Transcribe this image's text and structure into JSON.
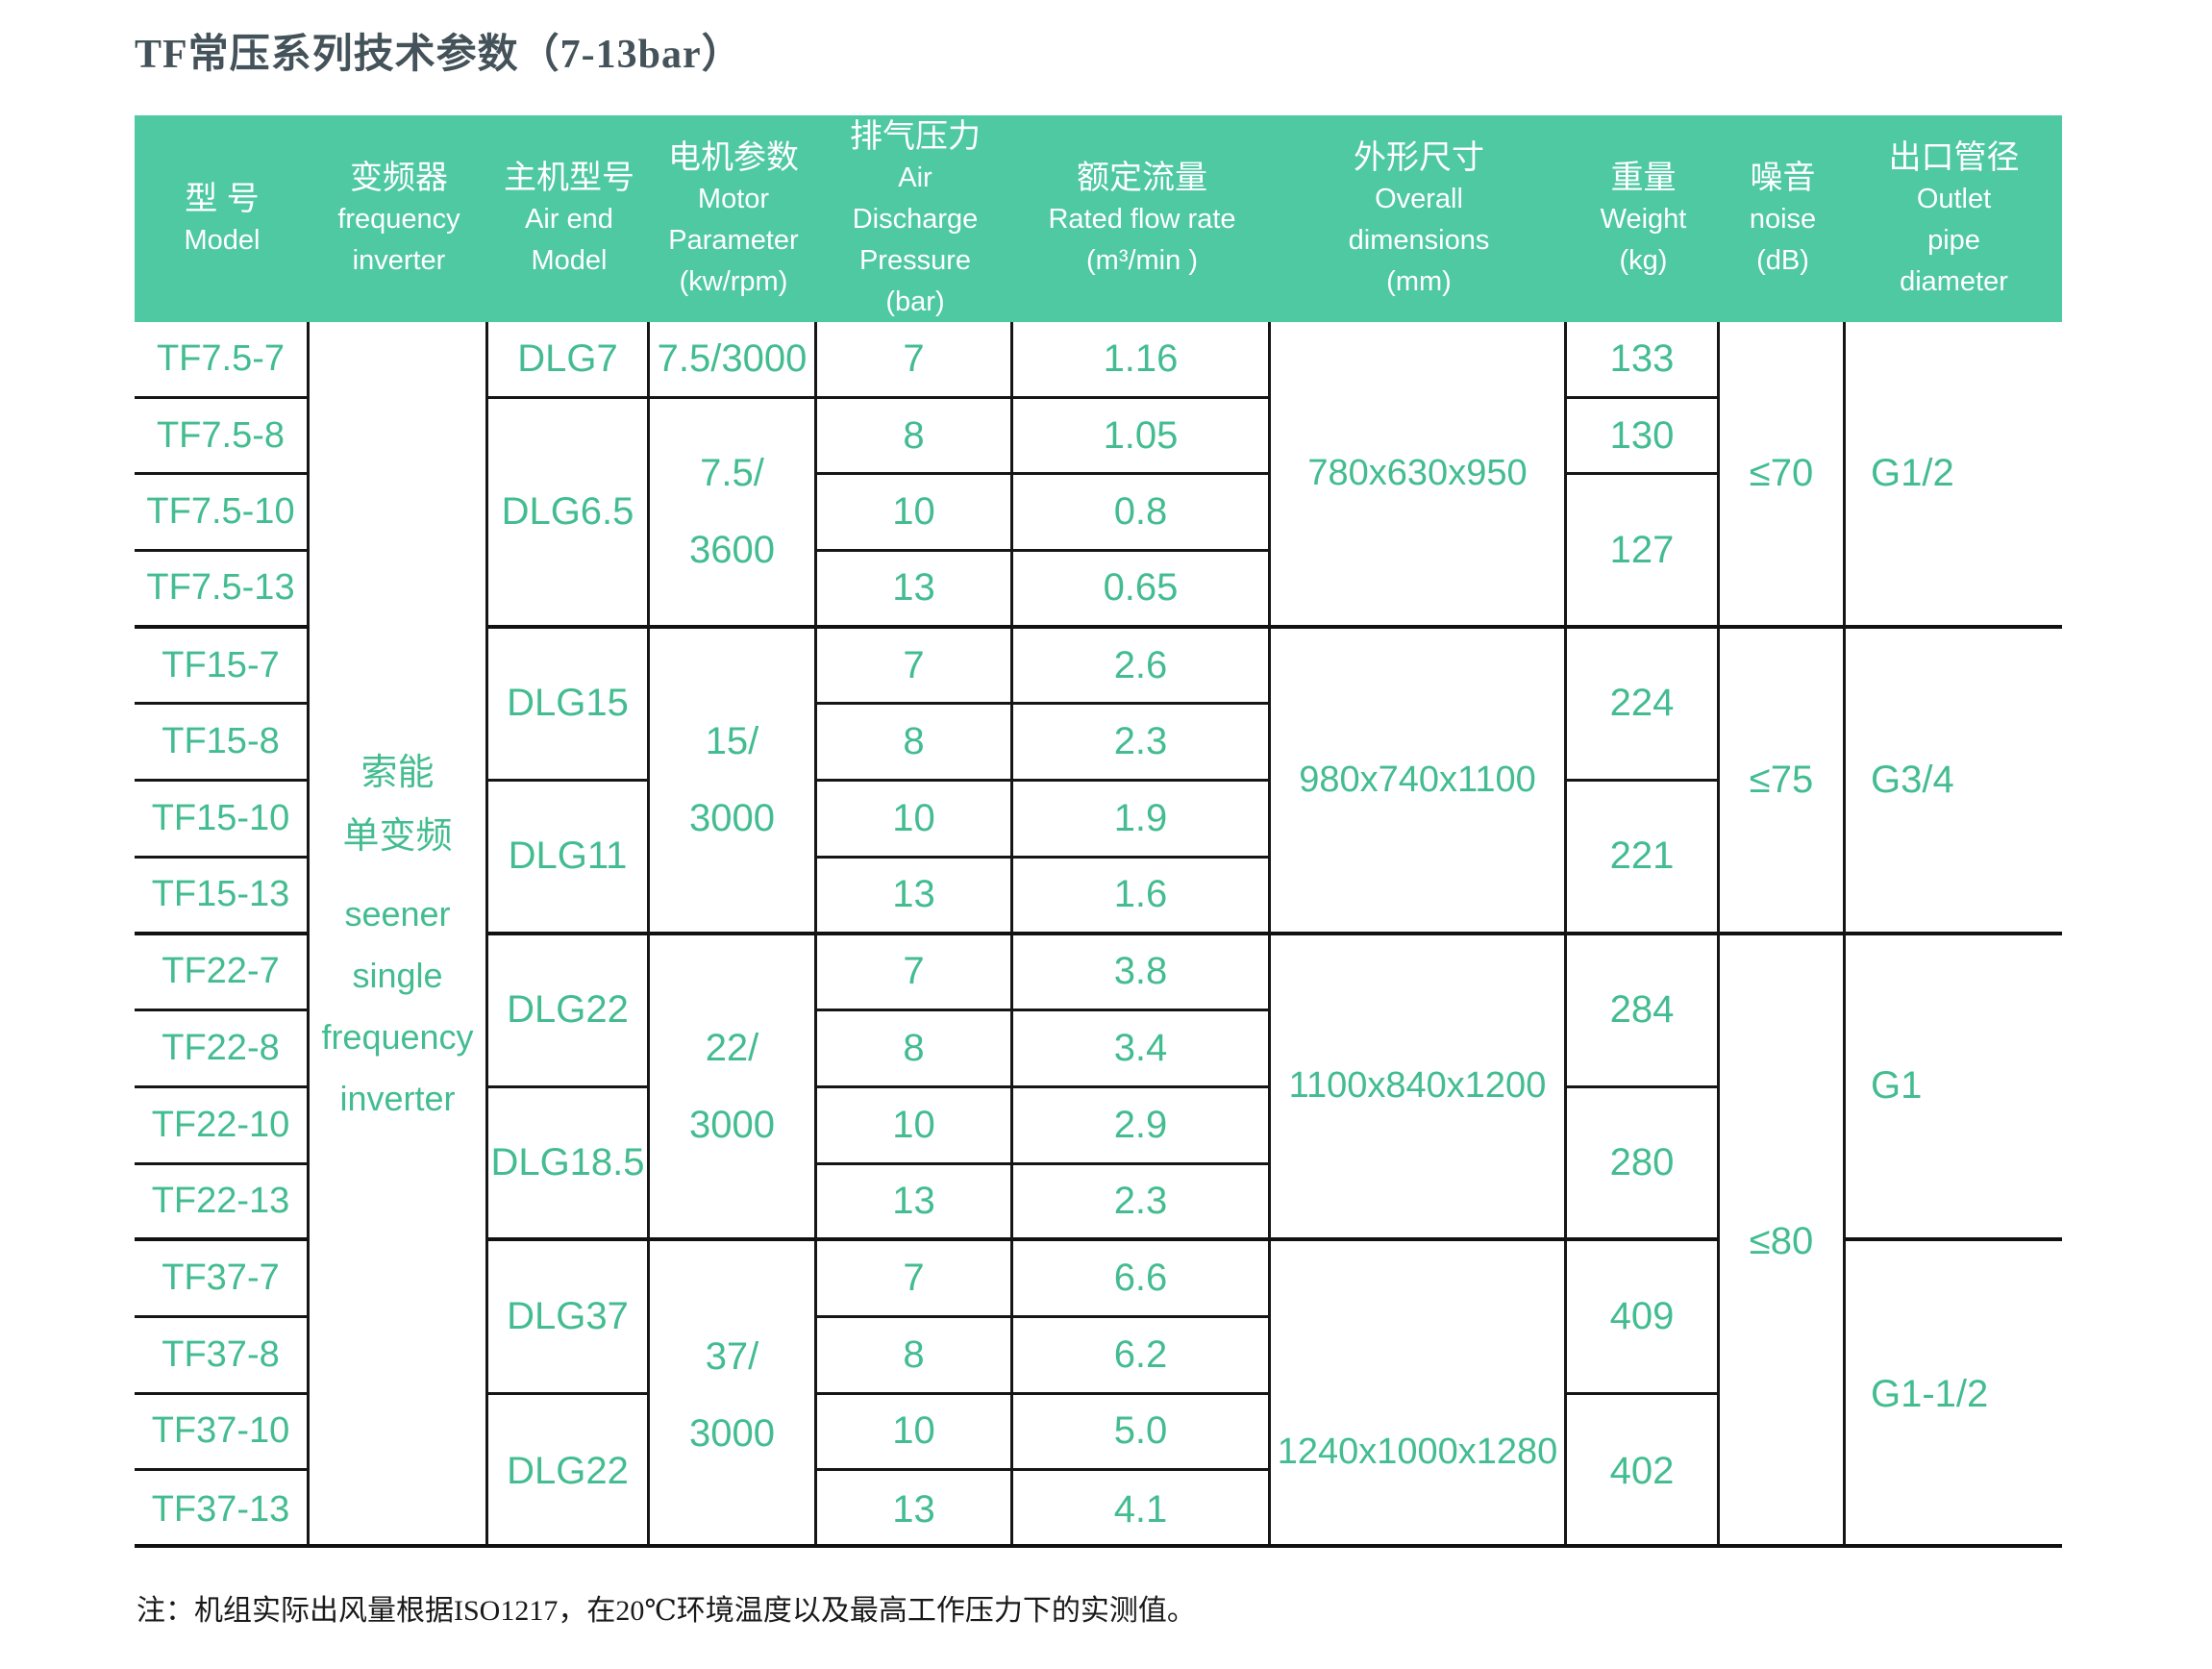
{
  "title": "TF常压系列技术参数（7-13bar）",
  "note": "注：机组实际出风量根据ISO1217，在20℃环境温度以及最高工作压力下的实测值。",
  "colors": {
    "header_bg": "#4ec9a1",
    "data_text_green": "#43bc91",
    "grid_line": "#161616",
    "title_text": "#44525a"
  },
  "header": {
    "model": [
      "型  号",
      "Model"
    ],
    "inverter": [
      "变频器",
      "frequency",
      "inverter"
    ],
    "airend": [
      "主机型号",
      "Air end",
      "Model"
    ],
    "motor": [
      "电机参数",
      "Motor",
      "Parameter",
      "(kw/rpm)"
    ],
    "pressure": [
      "排气压力",
      "Air",
      "Discharge",
      "Pressure",
      "(bar)"
    ],
    "flow": [
      "额定流量",
      "Rated flow rate",
      "(m³/min )"
    ],
    "dims": [
      "外形尺寸",
      "Overall",
      "dimensions",
      "(mm)"
    ],
    "weight": [
      "重量",
      "Weight",
      "(kg)"
    ],
    "noise": [
      "噪音",
      "noise",
      "(dB)"
    ],
    "outlet": [
      "出口管径",
      "Outlet",
      "pipe",
      "diameter"
    ]
  },
  "inverter_cell": {
    "zh1": "索能",
    "zh2": "单变频",
    "en1": "seener",
    "en2": "single",
    "en3": "frequency",
    "en4": "inverter"
  },
  "models": [
    "TF7.5-7",
    "TF7.5-8",
    "TF7.5-10",
    "TF7.5-13",
    "TF15-7",
    "TF15-8",
    "TF15-10",
    "TF15-13",
    "TF22-7",
    "TF22-8",
    "TF22-10",
    "TF22-13",
    "TF37-7",
    "TF37-8",
    "TF37-10",
    "TF37-13"
  ],
  "airends": [
    "DLG7",
    "DLG6.5",
    "DLG15",
    "DLG11",
    "DLG22",
    "DLG18.5",
    "DLG37",
    "DLG22"
  ],
  "motors": [
    {
      "l1": "7.5/3000",
      "l2": ""
    },
    {
      "l1": "7.5/",
      "l2": "3600"
    },
    {
      "l1": "15/",
      "l2": "3000"
    },
    {
      "l1": "22/",
      "l2": "3000"
    },
    {
      "l1": "37/",
      "l2": "3000"
    }
  ],
  "pressures": [
    "7",
    "8",
    "10",
    "13",
    "7",
    "8",
    "10",
    "13",
    "7",
    "8",
    "10",
    "13",
    "7",
    "8",
    "10",
    "13"
  ],
  "flows": [
    "1.16",
    "1.05",
    "0.8",
    "0.65",
    "2.6",
    "2.3",
    "1.9",
    "1.6",
    "3.8",
    "3.4",
    "2.9",
    "2.3",
    "6.6",
    "6.2",
    "5.0",
    "4.1"
  ],
  "dims": [
    "780x630x950",
    "980x740x1100",
    "1100x840x1200",
    "1240x1000x1280"
  ],
  "weights": [
    "133",
    "130",
    "127",
    "224",
    "221",
    "284",
    "280",
    "409",
    "402"
  ],
  "noises": [
    "≤70",
    "≤75",
    "≤80"
  ],
  "outlets": [
    "G1/2",
    "G3/4",
    "G1",
    "G1-1/2"
  ]
}
